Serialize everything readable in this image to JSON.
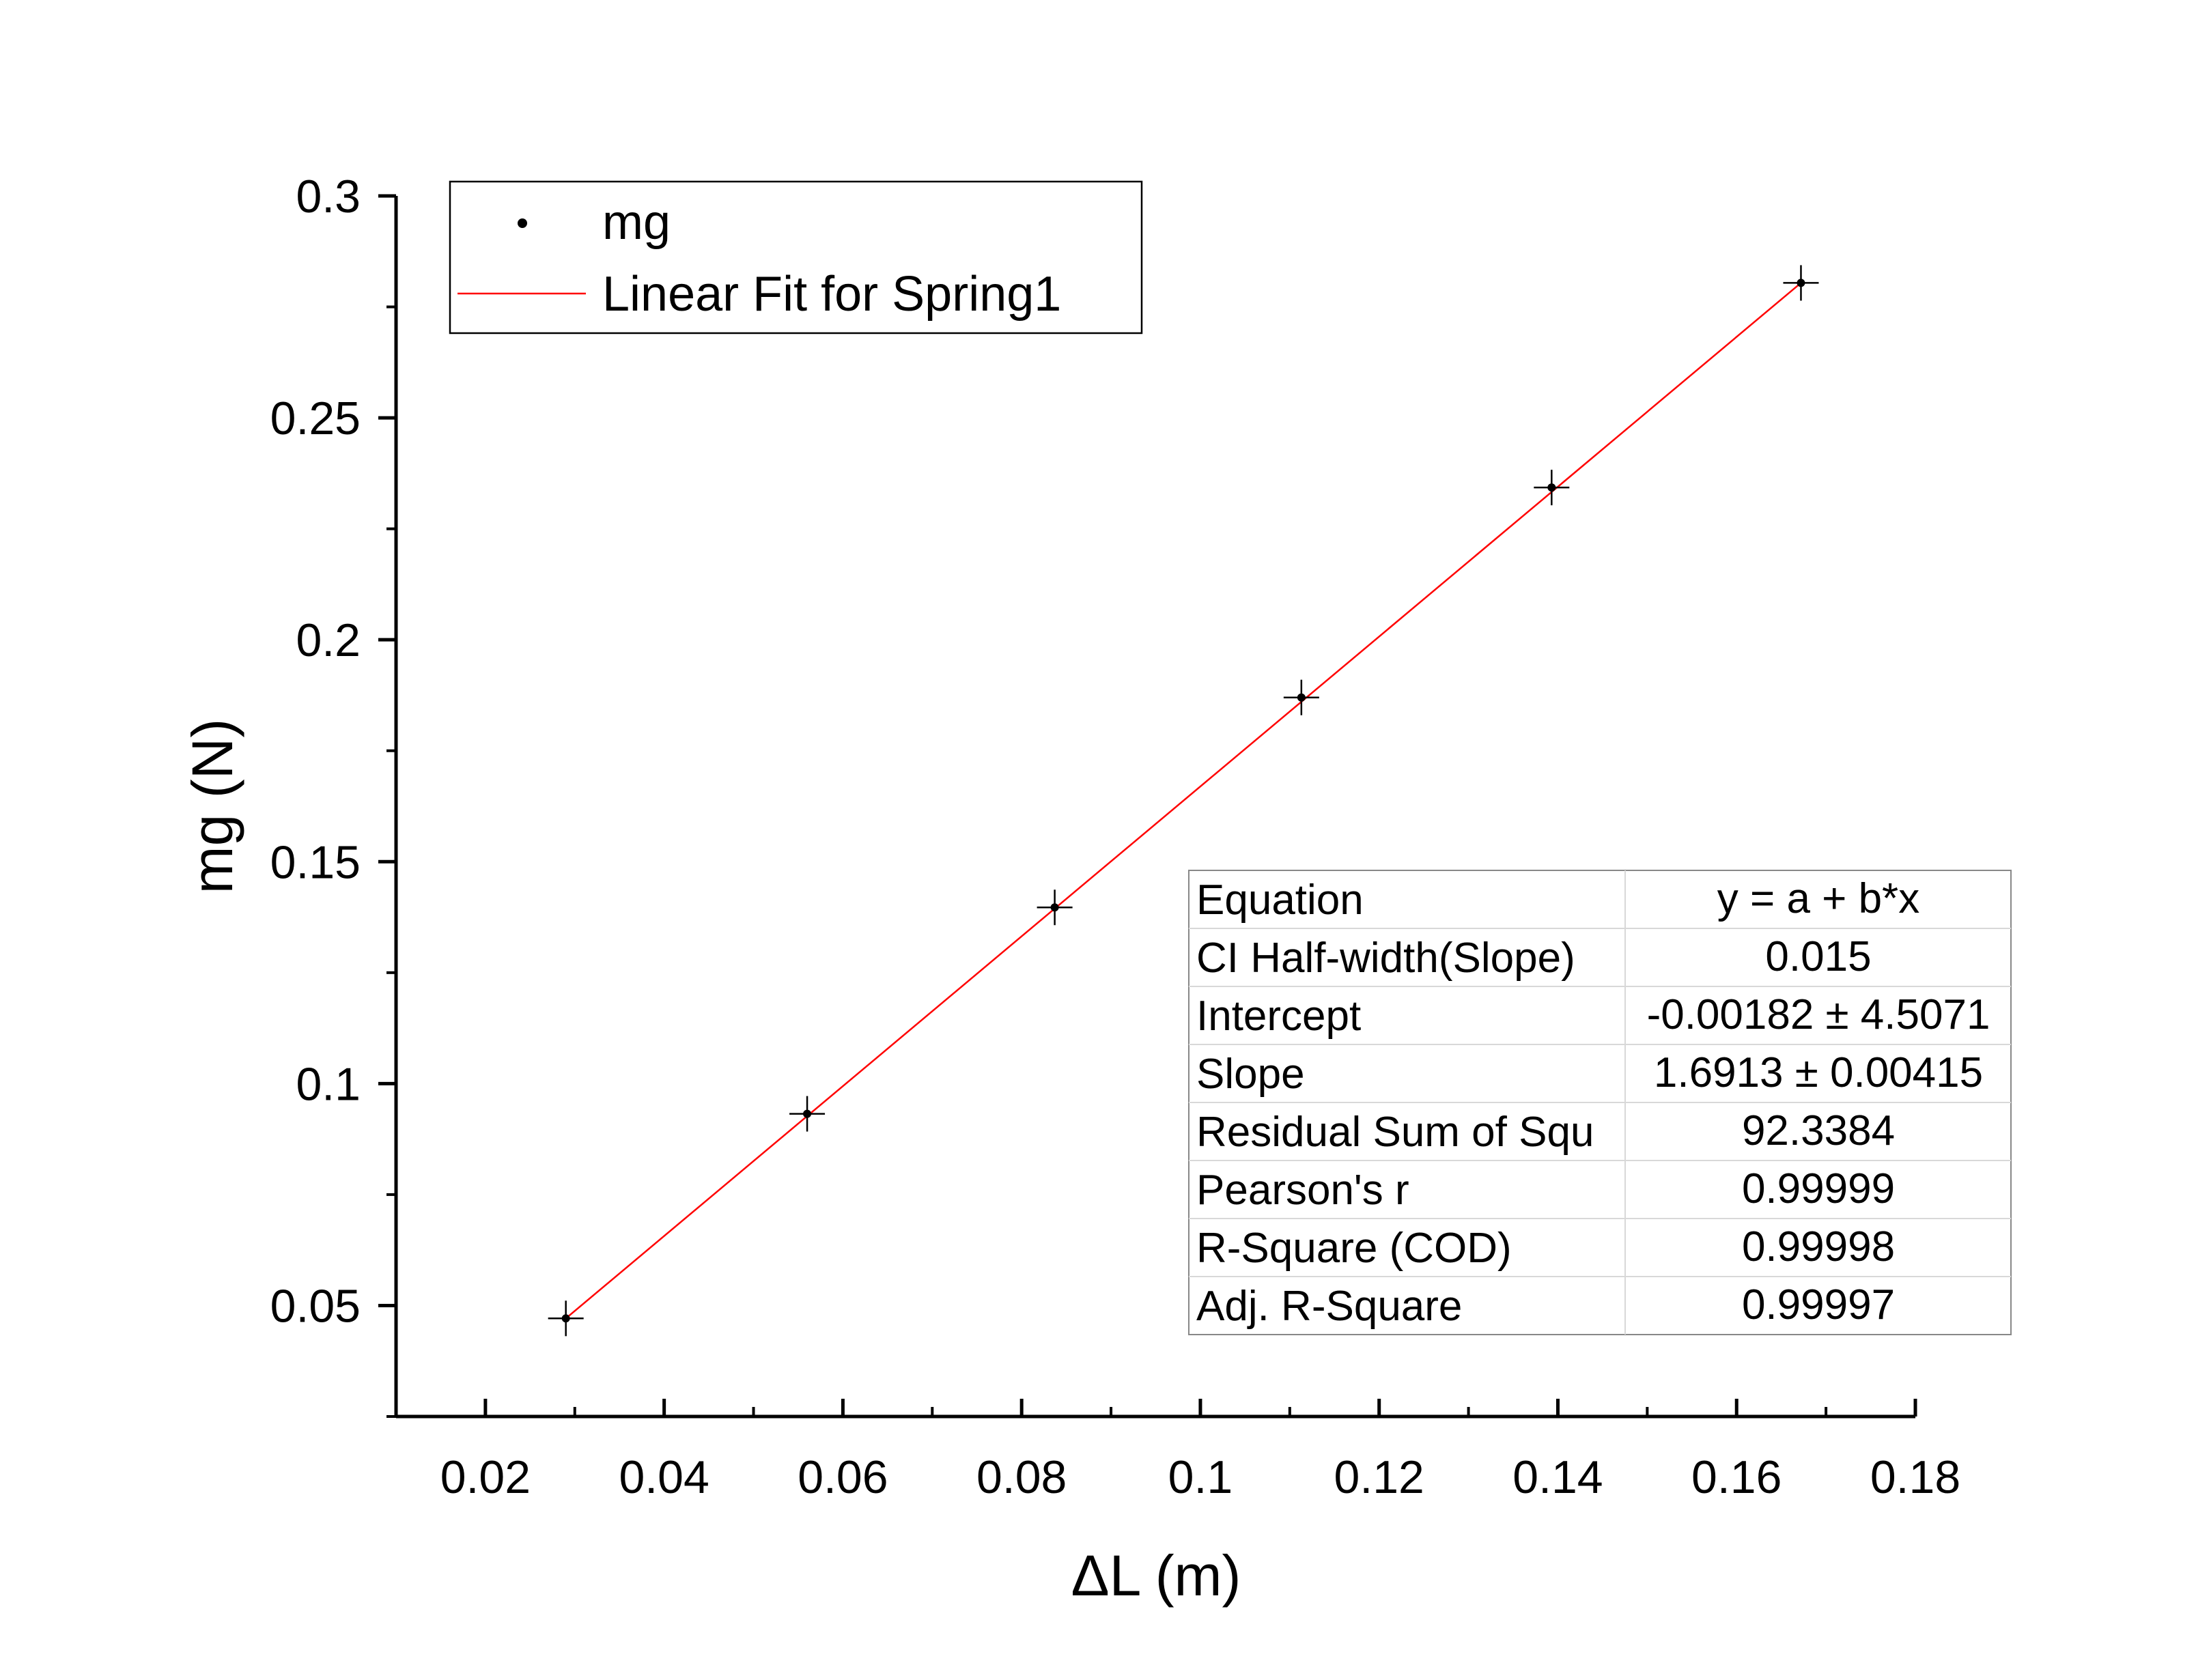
{
  "chart_data": {
    "type": "scatter",
    "xlabel": "ΔL (m)",
    "ylabel": "mg (N)",
    "xlim": [
      0.01,
      0.18
    ],
    "ylim": [
      0.025,
      0.3
    ],
    "x_ticks": [
      "0.02",
      "0.04",
      "0.06",
      "0.08",
      "0.1",
      "0.12",
      "0.14",
      "0.16",
      "0.18"
    ],
    "y_ticks": [
      "0.05",
      "0.1",
      "0.15",
      "0.2",
      "0.25",
      "0.3"
    ],
    "grid": false,
    "series": [
      {
        "name": "mg",
        "kind": "points",
        "color": "#000000",
        "x": [
          0.029,
          0.056,
          0.0837,
          0.1113,
          0.1393,
          0.1672
        ],
        "y": [
          0.0471,
          0.0932,
          0.1397,
          0.187,
          0.2343,
          0.2804
        ]
      },
      {
        "name": "Linear Fit for Spring1",
        "kind": "line",
        "color": "#ff0000",
        "x": [
          0.029,
          0.1672
        ],
        "y": [
          0.0471,
          0.2804
        ]
      }
    ],
    "legend_position": "top-left",
    "fit_table": [
      {
        "label": "Equation",
        "value": "y = a + b*x"
      },
      {
        "label": "CI Half-width(Slope)",
        "value": "0.015"
      },
      {
        "label": "Intercept",
        "value": "-0.00182 ± 4.5071"
      },
      {
        "label": "Slope",
        "value": "1.6913 ± 0.00415"
      },
      {
        "label": "Residual Sum of Squ",
        "value": "92.3384"
      },
      {
        "label": "Pearson's r",
        "value": "0.99999"
      },
      {
        "label": "R-Square (COD)",
        "value": "0.99998"
      },
      {
        "label": "Adj. R-Square",
        "value": "0.99997"
      }
    ]
  }
}
